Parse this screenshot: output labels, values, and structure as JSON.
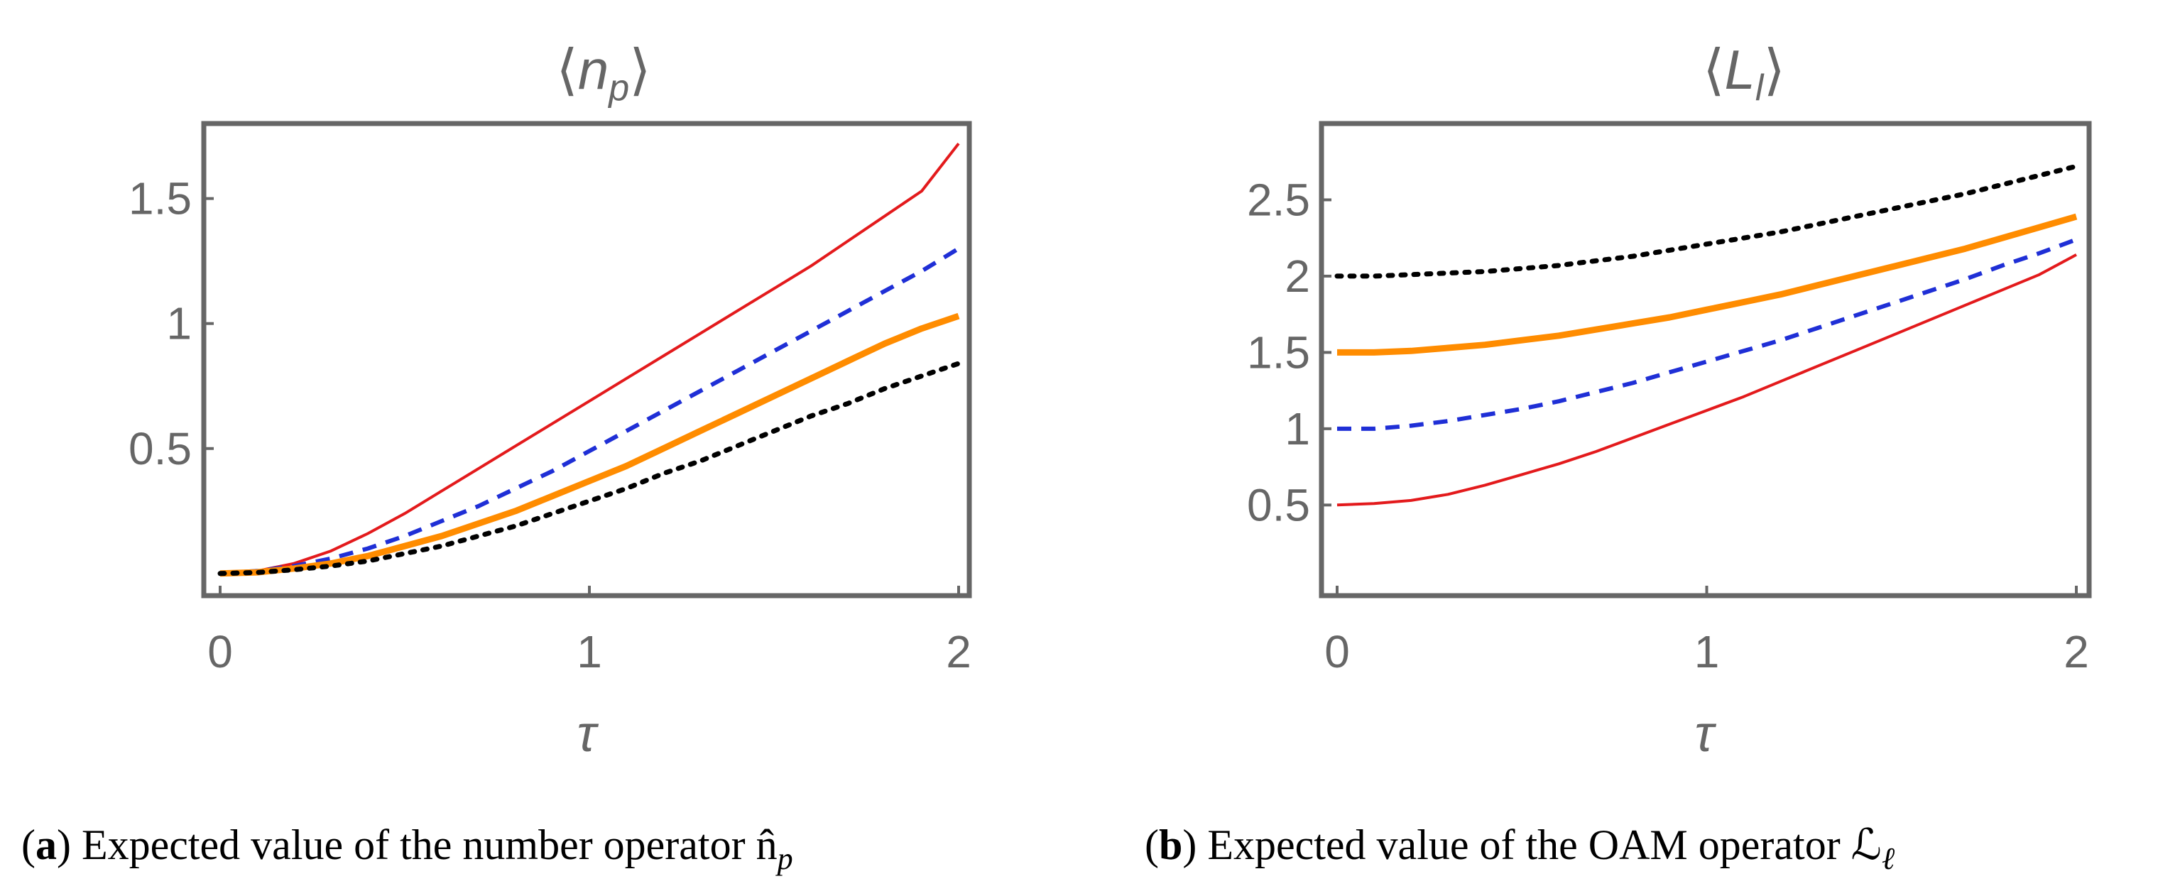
{
  "chart_data": [
    {
      "type": "line",
      "title": "⟨n_p⟩",
      "title_main": "n",
      "title_sub": "p",
      "xlabel": "τ",
      "ylabel": "",
      "xlim": [
        0,
        2
      ],
      "ylim": [
        -0.08,
        1.8
      ],
      "xticks": [
        0,
        1,
        2
      ],
      "xtick_labels": [
        "0",
        "1",
        "2"
      ],
      "yticks": [
        0.5,
        1,
        1.5
      ],
      "ytick_labels": [
        "0.5",
        "1",
        "1.5"
      ],
      "caption_label": "a",
      "caption_text": " Expected value of the number operator n̂",
      "caption_sub": "p",
      "series": [
        {
          "name": "red-solid",
          "color": "#e31a1c",
          "dash": "",
          "width": 4,
          "x": [
            0,
            0.1,
            0.2,
            0.3,
            0.4,
            0.5,
            0.6,
            0.7,
            0.8,
            0.9,
            1.0,
            1.1,
            1.2,
            1.3,
            1.4,
            1.5,
            1.6,
            1.7,
            1.8,
            1.9,
            2.0
          ],
          "y": [
            0,
            0.01,
            0.04,
            0.09,
            0.16,
            0.24,
            0.33,
            0.42,
            0.51,
            0.6,
            0.69,
            0.78,
            0.87,
            0.96,
            1.05,
            1.14,
            1.23,
            1.33,
            1.43,
            1.53,
            1.72
          ]
        },
        {
          "name": "blue-dashed",
          "color": "#1f2fd6",
          "dash": "20,14",
          "width": 6,
          "x": [
            0,
            0.1,
            0.2,
            0.3,
            0.4,
            0.5,
            0.6,
            0.7,
            0.8,
            0.9,
            1.0,
            1.1,
            1.2,
            1.3,
            1.4,
            1.5,
            1.6,
            1.7,
            1.8,
            1.9,
            2.0
          ],
          "y": [
            0,
            0.01,
            0.03,
            0.06,
            0.1,
            0.15,
            0.21,
            0.27,
            0.34,
            0.41,
            0.49,
            0.57,
            0.65,
            0.73,
            0.81,
            0.89,
            0.97,
            1.05,
            1.13,
            1.21,
            1.3
          ]
        },
        {
          "name": "orange-thick",
          "color": "#ff8c00",
          "dash": "",
          "width": 9,
          "x": [
            0,
            0.1,
            0.2,
            0.3,
            0.4,
            0.5,
            0.6,
            0.7,
            0.8,
            0.9,
            1.0,
            1.1,
            1.2,
            1.3,
            1.4,
            1.5,
            1.6,
            1.7,
            1.8,
            1.9,
            2.0
          ],
          "y": [
            0,
            0.005,
            0.02,
            0.04,
            0.07,
            0.11,
            0.15,
            0.2,
            0.25,
            0.31,
            0.37,
            0.43,
            0.5,
            0.57,
            0.64,
            0.71,
            0.78,
            0.85,
            0.92,
            0.98,
            1.03
          ]
        },
        {
          "name": "black-dotted",
          "color": "#000000",
          "dash": "6,12",
          "width": 7,
          "x": [
            0,
            0.1,
            0.2,
            0.3,
            0.4,
            0.5,
            0.6,
            0.7,
            0.8,
            0.9,
            1.0,
            1.1,
            1.2,
            1.3,
            1.4,
            1.5,
            1.6,
            1.7,
            1.8,
            1.9,
            2.0
          ],
          "y": [
            0,
            0.004,
            0.015,
            0.03,
            0.05,
            0.08,
            0.11,
            0.15,
            0.19,
            0.24,
            0.29,
            0.34,
            0.4,
            0.45,
            0.51,
            0.57,
            0.63,
            0.68,
            0.74,
            0.79,
            0.84
          ]
        }
      ]
    },
    {
      "type": "line",
      "title": "⟨L_l⟩",
      "title_main": "L",
      "title_sub": "l",
      "xlabel": "τ",
      "ylabel": "",
      "xlim": [
        0,
        2
      ],
      "ylim": [
        -0.08,
        3.0
      ],
      "xticks": [
        0,
        1,
        2
      ],
      "xtick_labels": [
        "0",
        "1",
        "2"
      ],
      "yticks": [
        0.5,
        1,
        1.5,
        2,
        2.5
      ],
      "ytick_labels": [
        "0.5",
        "1",
        "1.5",
        "2",
        "2.5"
      ],
      "caption_label": "b",
      "caption_text": " Expected value of the OAM operator ℒ",
      "caption_sub": "ℓ",
      "series": [
        {
          "name": "black-dotted",
          "color": "#000000",
          "dash": "6,12",
          "width": 7,
          "x": [
            0,
            0.1,
            0.2,
            0.3,
            0.4,
            0.5,
            0.6,
            0.7,
            0.8,
            0.9,
            1.0,
            1.1,
            1.2,
            1.3,
            1.4,
            1.5,
            1.6,
            1.7,
            1.8,
            1.9,
            2.0
          ],
          "y": [
            2.0,
            2.0,
            2.01,
            2.02,
            2.03,
            2.05,
            2.07,
            2.1,
            2.13,
            2.17,
            2.21,
            2.25,
            2.29,
            2.34,
            2.39,
            2.44,
            2.49,
            2.54,
            2.6,
            2.66,
            2.72
          ]
        },
        {
          "name": "orange-thick",
          "color": "#ff8c00",
          "dash": "",
          "width": 9,
          "x": [
            0,
            0.1,
            0.2,
            0.3,
            0.4,
            0.5,
            0.6,
            0.7,
            0.8,
            0.9,
            1.0,
            1.1,
            1.2,
            1.3,
            1.4,
            1.5,
            1.6,
            1.7,
            1.8,
            1.9,
            2.0
          ],
          "y": [
            1.5,
            1.5,
            1.51,
            1.53,
            1.55,
            1.58,
            1.61,
            1.65,
            1.69,
            1.73,
            1.78,
            1.83,
            1.88,
            1.94,
            2.0,
            2.06,
            2.12,
            2.18,
            2.25,
            2.32,
            2.39
          ]
        },
        {
          "name": "blue-dashed",
          "color": "#1f2fd6",
          "dash": "20,14",
          "width": 6,
          "x": [
            0,
            0.1,
            0.2,
            0.3,
            0.4,
            0.5,
            0.6,
            0.7,
            0.8,
            0.9,
            1.0,
            1.1,
            1.2,
            1.3,
            1.4,
            1.5,
            1.6,
            1.7,
            1.8,
            1.9,
            2.0
          ],
          "y": [
            1.0,
            1.0,
            1.02,
            1.05,
            1.09,
            1.13,
            1.18,
            1.24,
            1.3,
            1.37,
            1.44,
            1.51,
            1.58,
            1.66,
            1.74,
            1.82,
            1.9,
            1.98,
            2.07,
            2.15,
            2.24
          ]
        },
        {
          "name": "red-solid",
          "color": "#e31a1c",
          "dash": "",
          "width": 4,
          "x": [
            0,
            0.1,
            0.2,
            0.3,
            0.4,
            0.5,
            0.6,
            0.7,
            0.8,
            0.9,
            1.0,
            1.1,
            1.2,
            1.3,
            1.4,
            1.5,
            1.6,
            1.7,
            1.8,
            1.9,
            2.0
          ],
          "y": [
            0.5,
            0.51,
            0.53,
            0.57,
            0.63,
            0.7,
            0.77,
            0.85,
            0.94,
            1.03,
            1.12,
            1.21,
            1.31,
            1.41,
            1.51,
            1.61,
            1.71,
            1.81,
            1.91,
            2.01,
            2.14
          ]
        }
      ]
    }
  ]
}
